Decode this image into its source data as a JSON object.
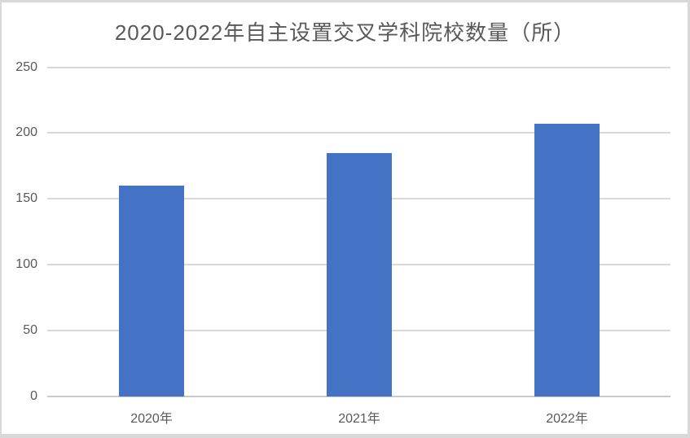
{
  "chart_data": {
    "type": "bar",
    "title": "2020-2022年自主设置交叉学科院校数量（所）",
    "categories": [
      "2020年",
      "2021年",
      "2022年"
    ],
    "values": [
      160,
      185,
      207
    ],
    "xlabel": "",
    "ylabel": "",
    "ylim": [
      0,
      250
    ],
    "yticks": [
      0,
      50,
      100,
      150,
      200,
      250
    ],
    "grid": "horizontal",
    "legend_position": "none",
    "colors": {
      "bar": "#4472C4",
      "gridline": "#D9D9D9",
      "axis_line": "#C9C9C9",
      "text": "#595959",
      "frame_border": "#D9D9D9",
      "background": "#FFFFFF"
    }
  }
}
